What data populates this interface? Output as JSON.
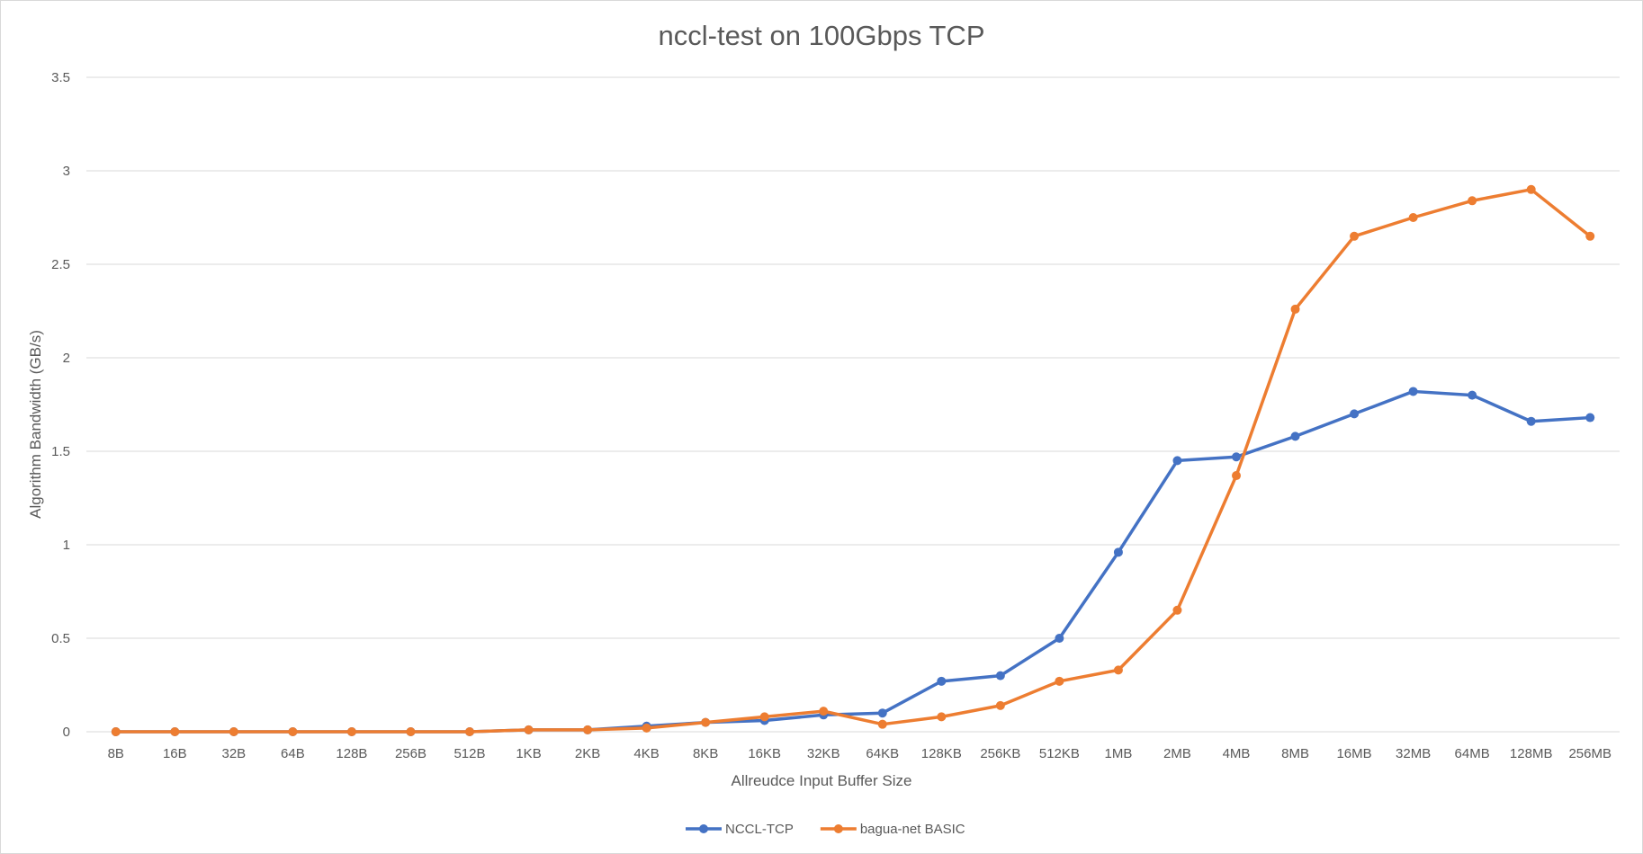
{
  "chart_data": {
    "type": "line",
    "title": "nccl-test on 100Gbps TCP",
    "xlabel": "Allreudce Input Buffer Size",
    "ylabel": "Algorithm Bandwidth (GB/s)",
    "ylim": [
      0,
      3.5
    ],
    "yticks": [
      "0",
      "0.5",
      "1",
      "1.5",
      "2",
      "2.5",
      "3",
      "3.5"
    ],
    "grid": true,
    "legend_position": "bottom",
    "categories": [
      "8B",
      "16B",
      "32B",
      "64B",
      "128B",
      "256B",
      "512B",
      "1KB",
      "2KB",
      "4KB",
      "8KB",
      "16KB",
      "32KB",
      "64KB",
      "128KB",
      "256KB",
      "512KB",
      "1MB",
      "2MB",
      "4MB",
      "8MB",
      "16MB",
      "32MB",
      "64MB",
      "128MB",
      "256MB"
    ],
    "series": [
      {
        "name": "NCCL-TCP",
        "color": "#4472C4",
        "values": [
          0,
          0,
          0,
          0,
          0,
          0,
          0,
          0.01,
          0.01,
          0.03,
          0.05,
          0.06,
          0.09,
          0.1,
          0.27,
          0.3,
          0.5,
          0.96,
          1.45,
          1.47,
          1.58,
          1.7,
          1.82,
          1.8,
          1.66,
          1.68
        ]
      },
      {
        "name": "bagua-net BASIC",
        "color": "#ED7D31",
        "values": [
          0,
          0,
          0,
          0,
          0,
          0,
          0,
          0.01,
          0.01,
          0.02,
          0.05,
          0.08,
          0.11,
          0.04,
          0.08,
          0.14,
          0.27,
          0.33,
          0.65,
          1.37,
          2.26,
          2.65,
          2.75,
          2.84,
          2.9,
          2.65
        ]
      }
    ]
  }
}
